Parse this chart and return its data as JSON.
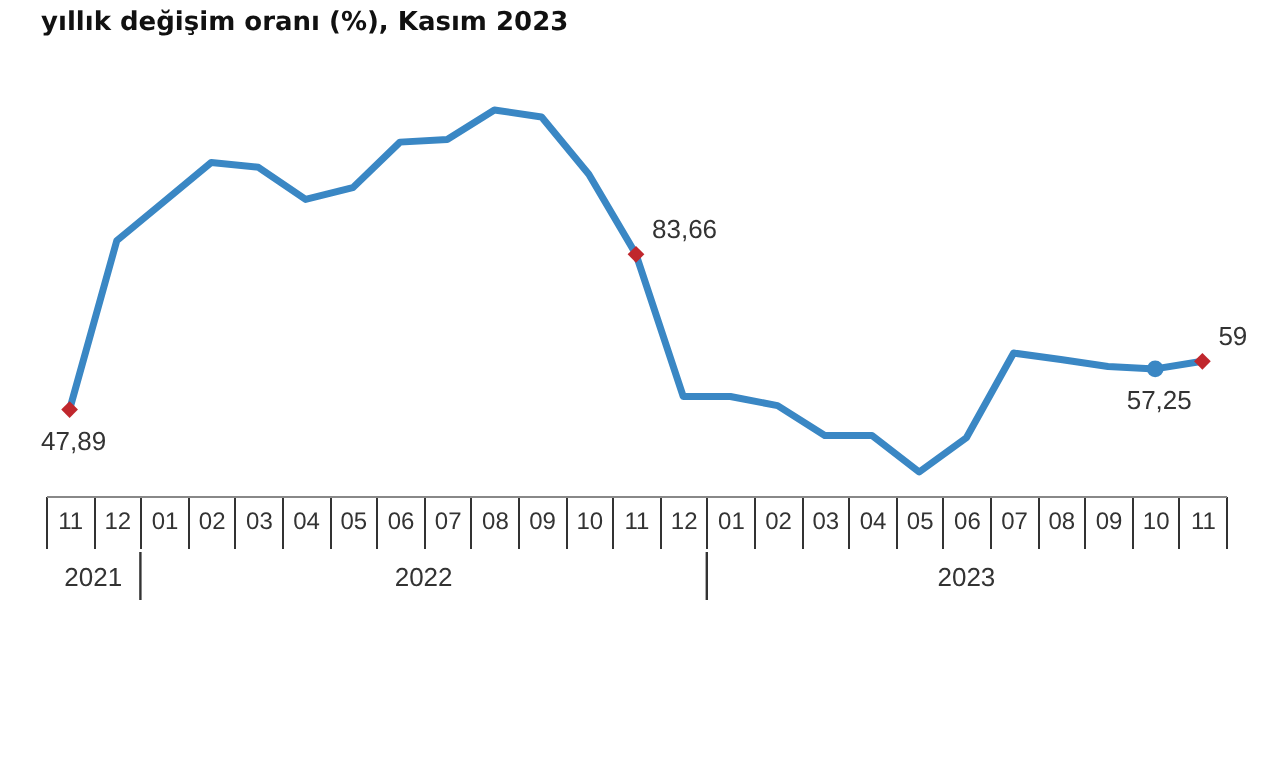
{
  "chart_data": {
    "type": "line",
    "title": "yıllık değişim oranı (%), Kasım 2023",
    "categories": [
      "11",
      "12",
      "01",
      "02",
      "03",
      "04",
      "05",
      "06",
      "07",
      "08",
      "09",
      "10",
      "11",
      "12",
      "01",
      "02",
      "03",
      "04",
      "05",
      "06",
      "07",
      "08",
      "09",
      "10",
      "11"
    ],
    "tick_labels": "x",
    "annotations": [
      "2021",
      "2022",
      "2023"
    ],
    "series": [
      {
        "color": "#3a87c4",
        "values": [
          47.89,
          86.8,
          95.8,
          104.8,
          103.7,
          96.3,
          99.0,
          109.5,
          110.1,
          116.9,
          115.3,
          102.1,
          83.66,
          50.9,
          50.9,
          48.8,
          41.9,
          41.9,
          33.5,
          41.4,
          60.9,
          59.4,
          57.8,
          57.25,
          59
        ],
        "value_labels": [
          "47,89",
          null,
          null,
          null,
          null,
          null,
          null,
          null,
          null,
          null,
          null,
          null,
          "83,66",
          null,
          null,
          null,
          null,
          null,
          null,
          null,
          null,
          null,
          null,
          "57,25",
          "59"
        ],
        "colors": [
          "#c0272d",
          null,
          null,
          null,
          null,
          null,
          null,
          null,
          null,
          null,
          null,
          null,
          "#c0272d",
          null,
          null,
          null,
          null,
          null,
          null,
          null,
          null,
          null,
          null,
          "#3a87c4",
          "#c0272d"
        ]
      }
    ]
  }
}
